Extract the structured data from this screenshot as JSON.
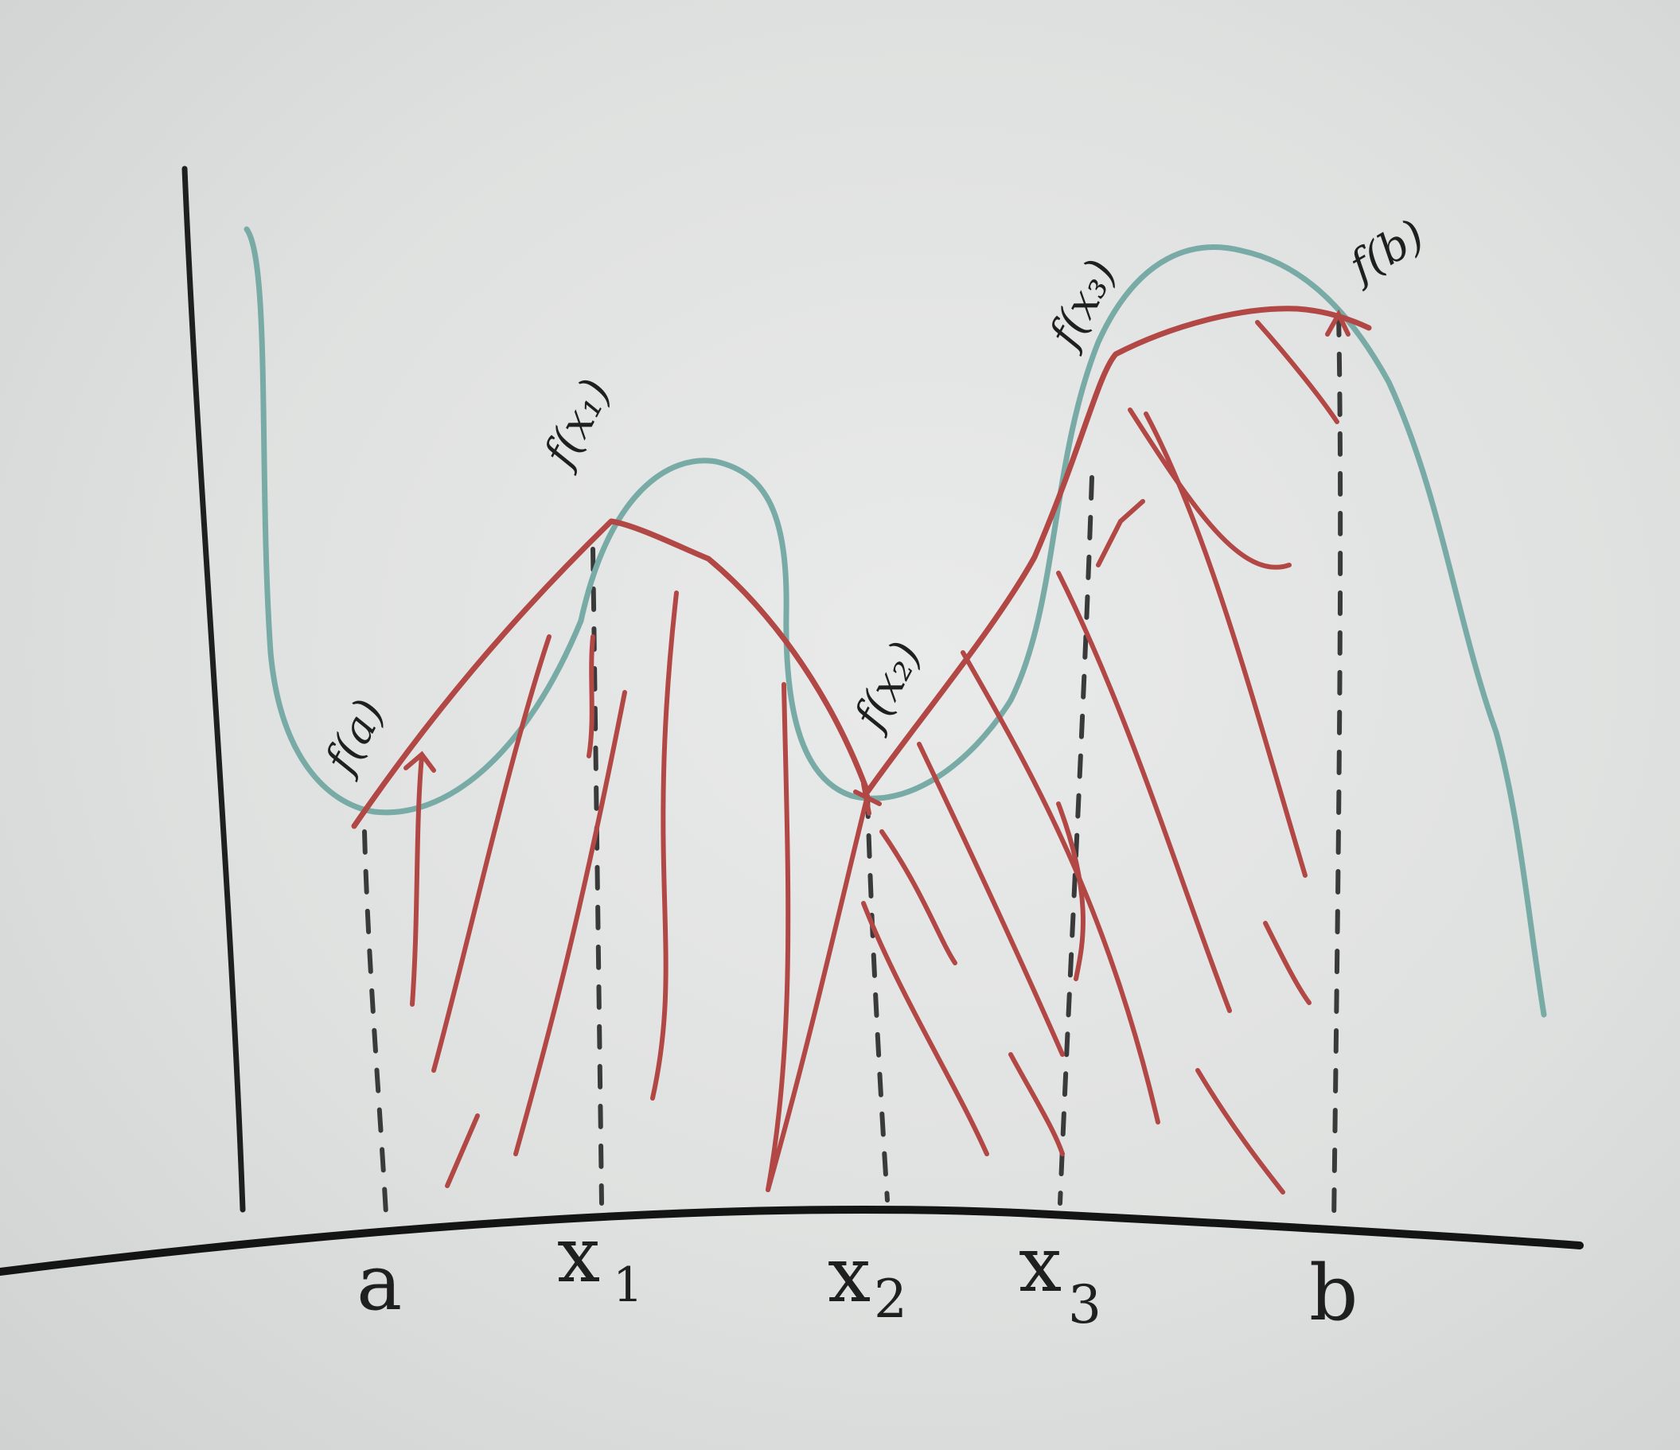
{
  "colors": {
    "board": "#e3e5e4",
    "ink": "#1f1f1f",
    "function_curve": "#79aba6",
    "piecewise_linear": "#b24846",
    "hatching": "#b24846"
  },
  "axis_labels": {
    "a": "a",
    "x1": "x",
    "x1_sub": "1",
    "x2": "x",
    "x2_sub": "2",
    "x3": "x",
    "x3_sub": "3",
    "b": "b"
  },
  "point_labels": {
    "fa": "f(a)",
    "fx1": "f(x₁)",
    "fx2": "f(x₂)",
    "fx3": "f(x₃)",
    "fb": "f(b)"
  }
}
